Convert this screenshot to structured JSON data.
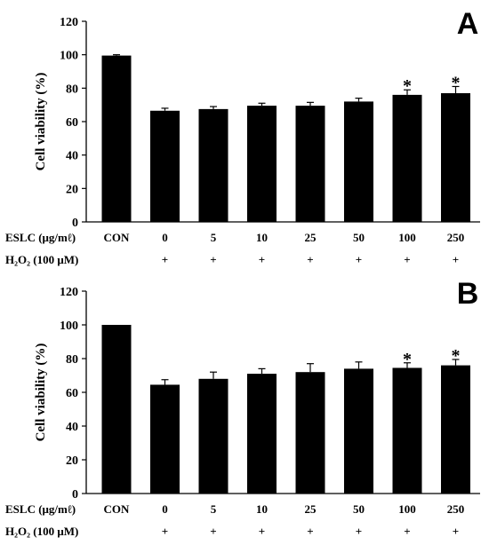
{
  "chart_data": [
    {
      "type": "bar",
      "panel_label": "A",
      "ylabel": "Cell viability (%)",
      "ylim": [
        0,
        120
      ],
      "yticks": [
        "0",
        "20",
        "40",
        "60",
        "80",
        "100",
        "120"
      ],
      "row1_label": "ESLC (μg/mℓ)",
      "row2_label": "H₂O₂ (100 μM)",
      "categories": [
        "CON",
        "0",
        "5",
        "10",
        "25",
        "50",
        "100",
        "250"
      ],
      "h2o2": [
        "",
        "+",
        "+",
        "+",
        "+",
        "+",
        "+",
        "+"
      ],
      "values": [
        99.5,
        66.5,
        67.5,
        69.5,
        69.5,
        72,
        76,
        77
      ],
      "errors": [
        0.5,
        1.5,
        1.5,
        1.5,
        2,
        2,
        3,
        4
      ],
      "significance": [
        "",
        "",
        "",
        "",
        "",
        "",
        "*",
        "*"
      ],
      "grid": false,
      "color": "#000000"
    },
    {
      "type": "bar",
      "panel_label": "B",
      "ylabel": "Cell viability (%)",
      "ylim": [
        0,
        120
      ],
      "yticks": [
        "0",
        "20",
        "40",
        "60",
        "80",
        "100",
        "120"
      ],
      "row1_label": "ESLC (μg/mℓ)",
      "row2_label": "H₂O₂ (100 μM)",
      "categories": [
        "CON",
        "0",
        "5",
        "10",
        "25",
        "50",
        "100",
        "250"
      ],
      "h2o2": [
        "",
        "+",
        "+",
        "+",
        "+",
        "+",
        "+",
        "+"
      ],
      "values": [
        100,
        64.5,
        68,
        71,
        72,
        74,
        74.5,
        76
      ],
      "errors": [
        0,
        3,
        4,
        3,
        5,
        4,
        3,
        3.5
      ],
      "significance": [
        "",
        "",
        "",
        "",
        "",
        "",
        "*",
        "*"
      ],
      "grid": false,
      "color": "#000000"
    }
  ]
}
